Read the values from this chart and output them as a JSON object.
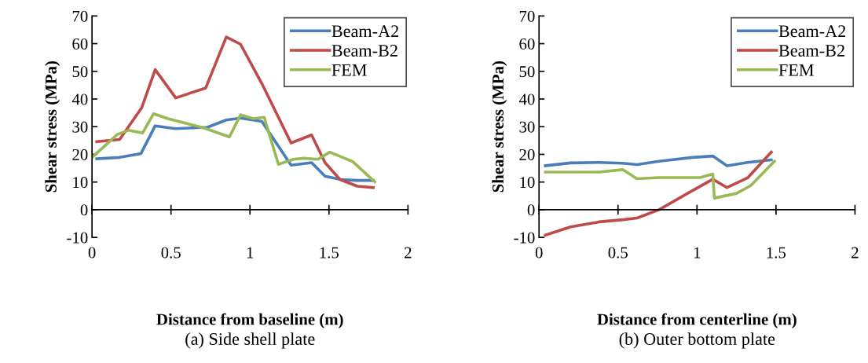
{
  "chart_data": [
    {
      "type": "line",
      "title": "(a) Side shell plate",
      "xlabel": "Distance from baseline (m)",
      "ylabel": "Shear stress (MPa)",
      "xlim": [
        0,
        2
      ],
      "xticks": [
        0,
        0.5,
        1,
        1.5,
        2
      ],
      "ylim": [
        -10,
        70
      ],
      "yticks": [
        -10,
        0,
        10,
        20,
        30,
        40,
        50,
        60,
        70
      ],
      "grid": false,
      "legend": "top right",
      "marker": "none",
      "line_style": "solid",
      "series": [
        {
          "name": "Beam-A2",
          "color": "#4a7ebb",
          "x": [
            0.03,
            0.175,
            0.31,
            0.4,
            0.53,
            0.73,
            0.85,
            0.94,
            1.075,
            1.26,
            1.39,
            1.475,
            1.575,
            1.675,
            1.78
          ],
          "values": [
            18.4,
            18.9,
            20.3,
            30.3,
            29.3,
            29.8,
            32.4,
            33.1,
            31.9,
            16.1,
            17.0,
            12.1,
            10.9,
            10.6,
            10.6
          ]
        },
        {
          "name": "Beam-B2",
          "color": "#be4b48",
          "x": [
            0.03,
            0.175,
            0.315,
            0.4,
            0.53,
            0.72,
            0.85,
            0.94,
            1.075,
            1.26,
            1.39,
            1.475,
            1.57,
            1.68,
            1.78
          ],
          "values": [
            24.6,
            25.4,
            36.9,
            50.6,
            40.4,
            44.0,
            62.4,
            59.8,
            45.6,
            24.1,
            27.0,
            17.0,
            10.9,
            8.5,
            8.0
          ]
        },
        {
          "name": "FEM",
          "color": "#98b954",
          "x": [
            0.0,
            0.16,
            0.23,
            0.32,
            0.39,
            0.48,
            0.71,
            0.87,
            0.94,
            1.02,
            1.09,
            1.18,
            1.275,
            1.34,
            1.43,
            1.505,
            1.65,
            1.79
          ],
          "values": [
            18.9,
            27.2,
            28.7,
            27.7,
            34.7,
            32.9,
            29.5,
            26.3,
            34.3,
            32.9,
            33.4,
            16.4,
            18.2,
            18.6,
            18.2,
            20.8,
            17.4,
            10.1
          ]
        }
      ]
    },
    {
      "type": "line",
      "title": "(b) Outer bottom plate",
      "xlabel": "Distance from centerline (m)",
      "ylabel": "Shear stress (MPa)",
      "xlim": [
        0,
        2
      ],
      "xticks": [
        0,
        0.5,
        1,
        1.5,
        2
      ],
      "ylim": [
        -10,
        70
      ],
      "yticks": [
        -10,
        0,
        10,
        20,
        30,
        40,
        50,
        60,
        70
      ],
      "grid": false,
      "legend": "top right",
      "marker": "none",
      "line_style": "solid",
      "series": [
        {
          "name": "Beam-A2",
          "color": "#4a7ebb",
          "x": [
            0.04,
            0.2,
            0.38,
            0.53,
            0.62,
            0.76,
            0.97,
            1.1,
            1.19,
            1.32,
            1.47
          ],
          "values": [
            15.9,
            16.9,
            17.1,
            16.8,
            16.3,
            17.5,
            18.9,
            19.4,
            15.9,
            17.1,
            18.0
          ]
        },
        {
          "name": "Beam-B2",
          "color": "#be4b48",
          "x": [
            0.04,
            0.2,
            0.38,
            0.53,
            0.62,
            0.76,
            0.94,
            1.1,
            1.19,
            1.32,
            1.47
          ],
          "values": [
            -9.2,
            -6.2,
            -4.4,
            -3.6,
            -3.0,
            0.0,
            5.9,
            11.0,
            8.0,
            11.5,
            20.8
          ]
        },
        {
          "name": "FEM",
          "color": "#98b954",
          "x": [
            0.04,
            0.38,
            0.53,
            0.62,
            0.76,
            1.02,
            1.1,
            1.11,
            1.25,
            1.34,
            1.49
          ],
          "values": [
            13.6,
            13.6,
            14.5,
            11.2,
            11.6,
            11.6,
            12.9,
            4.2,
            5.9,
            8.7,
            17.5
          ]
        }
      ]
    }
  ]
}
